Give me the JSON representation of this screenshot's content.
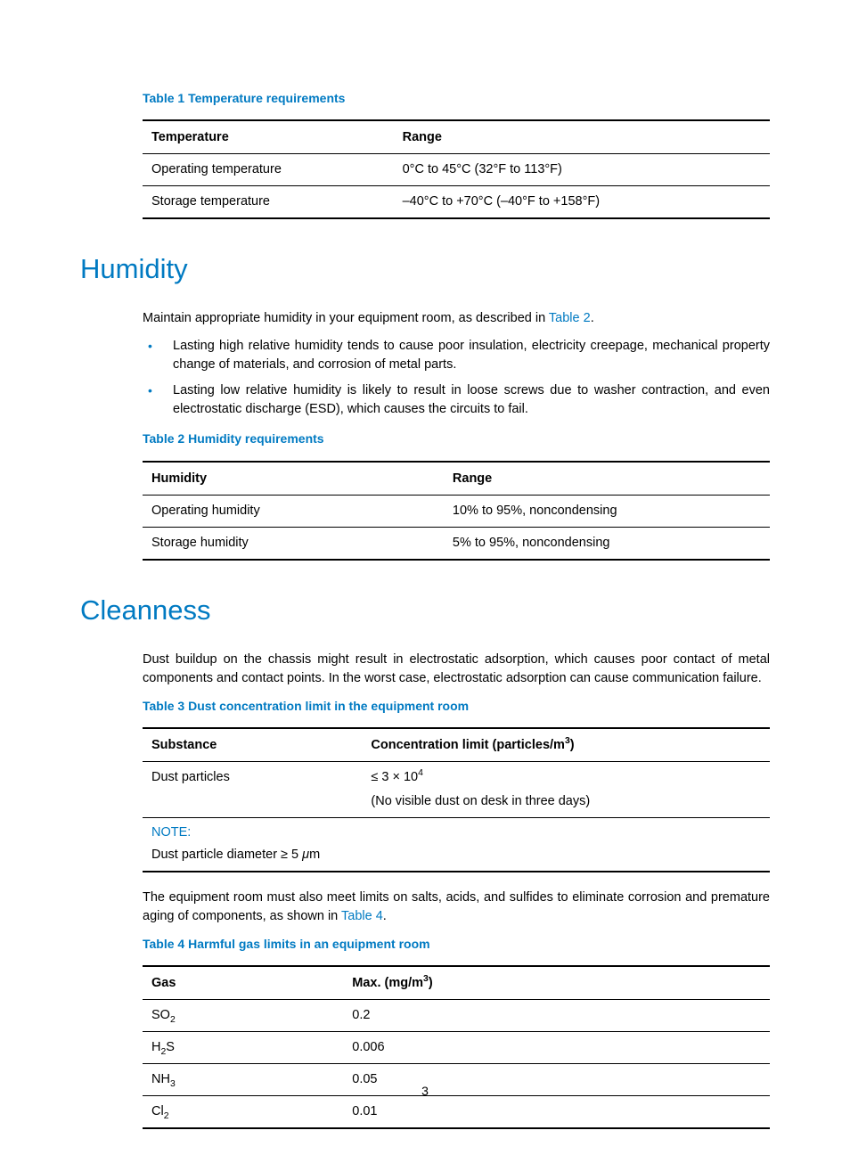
{
  "colors": {
    "accent": "#007ac2",
    "text": "#000000",
    "background": "#ffffff",
    "table_border": "#000000"
  },
  "typography": {
    "body_fontsize_pt": 11,
    "caption_fontsize_pt": 11,
    "heading_fontsize_pt": 24,
    "heading_weight": "light",
    "body_family": "Segoe UI / Futura-like sans-serif"
  },
  "table1": {
    "caption": "Table 1 Temperature requirements",
    "col_widths": [
      "40%",
      "60%"
    ],
    "header": {
      "c1": "Temperature",
      "c2": "Range"
    },
    "rows": [
      {
        "c1": "Operating temperature",
        "c2": "0°C to 45°C (32°F to 113°F)"
      },
      {
        "c1": "Storage temperature",
        "c2": "–40°C to +70°C (–40°F to +158°F)"
      }
    ]
  },
  "sec_humidity": {
    "heading": "Humidity",
    "intro_a": "Maintain appropriate humidity in your equipment room, as described in ",
    "intro_link": "Table 2",
    "intro_b": ".",
    "bullets": [
      "Lasting high relative humidity tends to cause poor insulation, electricity creepage, mechanical property change of materials, and corrosion of metal parts.",
      "Lasting low relative humidity is likely to result in loose screws due to washer contraction, and even electrostatic discharge (ESD), which causes the circuits to fail."
    ]
  },
  "table2": {
    "caption": "Table 2 Humidity requirements",
    "col_widths": [
      "48%",
      "52%"
    ],
    "header": {
      "c1": "Humidity",
      "c2": "Range"
    },
    "rows": [
      {
        "c1": "Operating humidity",
        "c2": "10% to 95%, noncondensing"
      },
      {
        "c1": "Storage humidity",
        "c2": "5% to 95%, noncondensing"
      }
    ]
  },
  "sec_cleanness": {
    "heading": "Cleanness",
    "intro": "Dust buildup on the chassis might result in electrostatic adsorption, which causes poor contact of metal components and contact points. In the worst case, electrostatic adsorption can cause communication failure."
  },
  "table3": {
    "caption": "Table 3 Dust concentration limit in the equipment room",
    "col_widths": [
      "35%",
      "65%"
    ],
    "header": {
      "c1": "Substance",
      "c2_html": "Concentration limit (particles/m<sup>3</sup>)"
    },
    "row": {
      "c1": "Dust particles",
      "c2_line1_html": "≤ 3 × 10<sup>4</sup>",
      "c2_line2": "(No visible dust on desk in three days)"
    },
    "note_label": "NOTE:",
    "note_text_html": "Dust particle diameter ≥ 5 <i>μ</i>m"
  },
  "cleanness_para2_a": "The equipment room must also meet limits on salts, acids, and sulfides to eliminate corrosion and premature aging of components, as shown in ",
  "cleanness_para2_link": "Table 4",
  "cleanness_para2_b": ".",
  "table4": {
    "caption": "Table 4 Harmful gas limits in an equipment room",
    "col_widths": [
      "32%",
      "68%"
    ],
    "header": {
      "c1": "Gas",
      "c2_html": "Max. (mg/m<sup>3</sup>)"
    },
    "rows": [
      {
        "c1_html": "SO<sub>2</sub>",
        "c2": "0.2"
      },
      {
        "c1_html": "H<sub>2</sub>S",
        "c2": "0.006"
      },
      {
        "c1_html": "NH<sub>3</sub>",
        "c2": "0.05"
      },
      {
        "c1_html": "Cl<sub>2</sub>",
        "c2": "0.01"
      }
    ]
  },
  "page_number": "3"
}
